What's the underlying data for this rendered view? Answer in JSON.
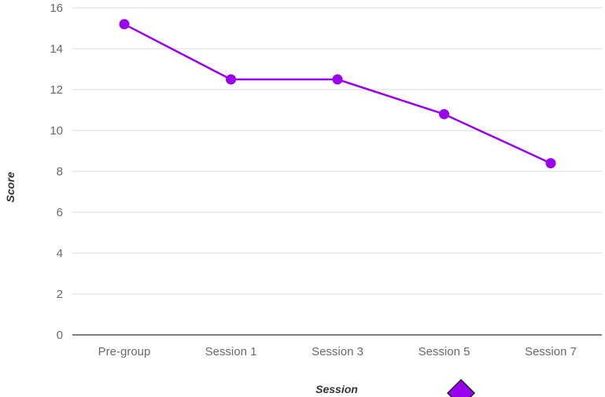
{
  "chart_data": {
    "type": "line",
    "categories": [
      "Pre-group",
      "Session 1",
      "Session 3",
      "Session 5",
      "Session 7"
    ],
    "series": [
      {
        "values": [
          15.2,
          12.5,
          12.5,
          10.8,
          8.4
        ]
      }
    ],
    "xlabel": "Session",
    "ylabel": "Score",
    "ylim": [
      0,
      16
    ],
    "yticks": [
      0,
      2,
      4,
      6,
      8,
      10,
      12,
      14,
      16
    ],
    "grid": true,
    "legend": "none",
    "colors": {
      "series": "#9900ee",
      "marker": "#9900ee",
      "grid": "#d9d9d9",
      "axis": "#333333",
      "text": "#6a6a6a"
    },
    "marker_icon": "diamond-icon"
  }
}
